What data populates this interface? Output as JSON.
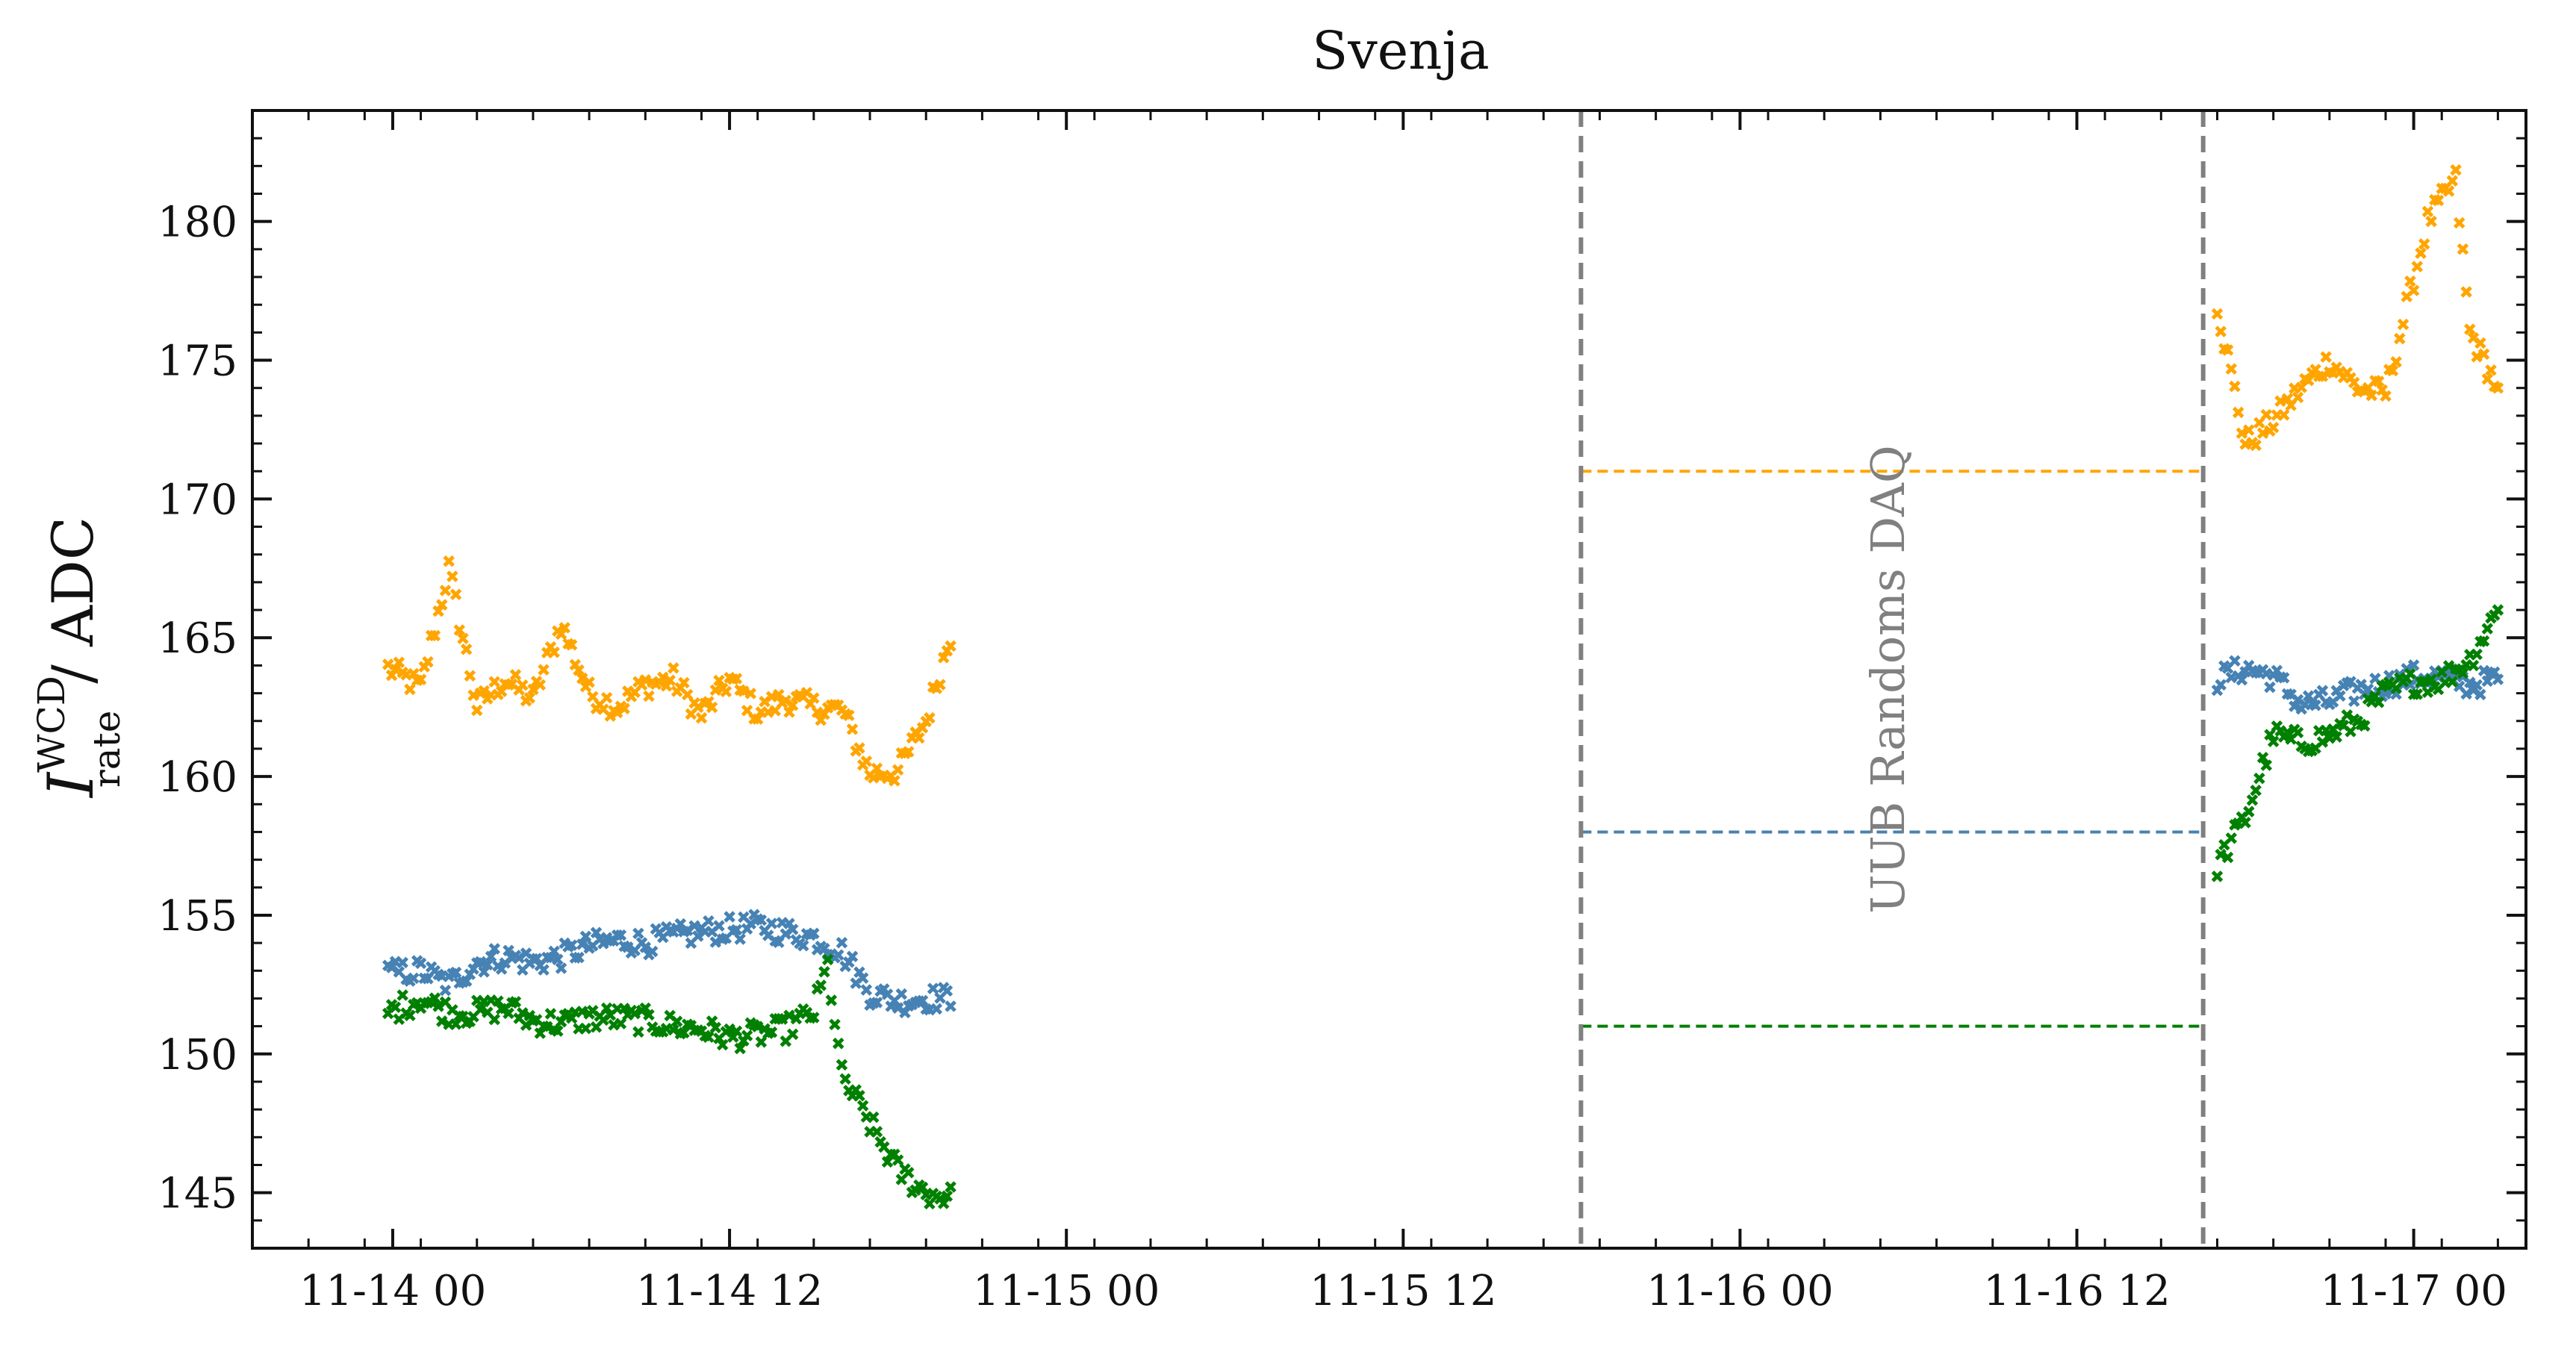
{
  "chart_data": {
    "type": "scatter",
    "title": "Svenja",
    "xlabel": "",
    "ylabel": {
      "symbol": "I",
      "superscript": "WCD",
      "subscript": "rate",
      "unit": "/ ADC"
    },
    "x_axis": {
      "type": "datetime",
      "range": [
        "11-13 19:00",
        "11-17 04:00"
      ],
      "tick_labels": [
        "11-14 00",
        "11-14 12",
        "11-15 00",
        "11-15 12",
        "11-16 00",
        "11-16 12",
        "11-17 00"
      ],
      "tick_hours": [
        0,
        12,
        24,
        36,
        48,
        60,
        72
      ]
    },
    "ylim": [
      143,
      184
    ],
    "y_ticks": [
      145,
      150,
      155,
      160,
      165,
      170,
      175,
      180
    ],
    "grid": false,
    "legend": "none",
    "colors": {
      "orange": "#FFA500",
      "steelblue": "#4682B4",
      "green": "#008000",
      "gray": "#808080"
    },
    "gap": {
      "start": "11-15 18:20",
      "end": "11-16 16:30",
      "label": "UUB Randoms DAQ",
      "levels": [
        {
          "color": "#FFA500",
          "value": 171
        },
        {
          "color": "#4682B4",
          "value": 158
        },
        {
          "color": "#008000",
          "value": 151
        }
      ]
    },
    "series": [
      {
        "color": "#FFA500",
        "marker": "x",
        "key_points": [
          [
            "11-13 23:50",
            163.9
          ],
          [
            "11-14 01:00",
            163.2
          ],
          [
            "11-14 02:00",
            167.5
          ],
          [
            "11-14 03:00",
            162.5
          ],
          [
            "11-14 04:00",
            163.5
          ],
          [
            "11-14 05:00",
            162.8
          ],
          [
            "11-14 06:00",
            165.5
          ],
          [
            "11-14 07:00",
            163.0
          ],
          [
            "11-14 08:00",
            162.5
          ],
          [
            "11-14 09:00",
            163.3
          ],
          [
            "11-14 10:00",
            163.5
          ],
          [
            "11-14 11:00",
            162.2
          ],
          [
            "11-14 12:00",
            163.5
          ],
          [
            "11-14 13:00",
            162.3
          ],
          [
            "11-14 14:00",
            162.8
          ],
          [
            "11-14 15:00",
            162.5
          ],
          [
            "11-14 16:00",
            162.4
          ],
          [
            "11-14 17:00",
            160.1
          ],
          [
            "11-14 18:00",
            160.2
          ],
          [
            "11-14 19:00",
            162.0
          ],
          [
            "11-14 20:00",
            165.5
          ],
          [
            "11-16 17:00",
            177.0
          ],
          [
            "11-16 18:00",
            172.0
          ],
          [
            "11-16 19:00",
            172.8
          ],
          [
            "11-16 20:00",
            174.0
          ],
          [
            "11-16 21:00",
            175.0
          ],
          [
            "11-16 22:00",
            174.0
          ],
          [
            "11-16 23:00",
            173.8
          ],
          [
            "11-17 00:30",
            180.0
          ],
          [
            "11-17 01:30",
            181.5
          ],
          [
            "11-17 02:00",
            176.0
          ],
          [
            "11-17 03:00",
            174.0
          ]
        ]
      },
      {
        "color": "#4682B4",
        "marker": "x",
        "key_points": [
          [
            "11-13 23:50",
            152.9
          ],
          [
            "11-14 01:00",
            153.0
          ],
          [
            "11-14 02:00",
            152.5
          ],
          [
            "11-14 03:00",
            153.3
          ],
          [
            "11-14 04:00",
            153.5
          ],
          [
            "11-14 05:00",
            153.3
          ],
          [
            "11-14 06:00",
            153.5
          ],
          [
            "11-14 07:00",
            153.9
          ],
          [
            "11-14 08:00",
            154.1
          ],
          [
            "11-14 09:00",
            154.0
          ],
          [
            "11-14 10:00",
            154.2
          ],
          [
            "11-14 11:00",
            154.4
          ],
          [
            "11-14 12:00",
            154.5
          ],
          [
            "11-14 13:00",
            154.6
          ],
          [
            "11-14 14:00",
            154.4
          ],
          [
            "11-14 15:00",
            154.2
          ],
          [
            "11-14 16:00",
            153.7
          ],
          [
            "11-14 17:00",
            152.2
          ],
          [
            "11-14 18:00",
            151.9
          ],
          [
            "11-14 19:00",
            152.0
          ],
          [
            "11-14 20:00",
            152.0
          ],
          [
            "11-16 17:00",
            163.5
          ],
          [
            "11-16 18:00",
            163.9
          ],
          [
            "11-16 19:00",
            163.6
          ],
          [
            "11-16 20:00",
            162.6
          ],
          [
            "11-16 21:00",
            162.7
          ],
          [
            "11-16 22:00",
            163.1
          ],
          [
            "11-16 23:00",
            163.3
          ],
          [
            "11-17 00:00",
            163.6
          ],
          [
            "11-17 01:00",
            163.6
          ],
          [
            "11-17 02:00",
            163.3
          ],
          [
            "11-17 03:00",
            163.5
          ]
        ]
      },
      {
        "color": "#008000",
        "marker": "x",
        "key_points": [
          [
            "11-13 23:50",
            151.5
          ],
          [
            "11-14 01:00",
            152.0
          ],
          [
            "11-14 02:00",
            151.5
          ],
          [
            "11-14 03:00",
            151.5
          ],
          [
            "11-14 04:00",
            151.7
          ],
          [
            "11-14 05:00",
            151.2
          ],
          [
            "11-14 06:00",
            151.1
          ],
          [
            "11-14 07:00",
            151.3
          ],
          [
            "11-14 08:00",
            151.3
          ],
          [
            "11-14 09:00",
            151.2
          ],
          [
            "11-14 10:00",
            151.0
          ],
          [
            "11-14 11:00",
            150.9
          ],
          [
            "11-14 12:00",
            150.6
          ],
          [
            "11-14 13:00",
            150.7
          ],
          [
            "11-14 14:00",
            150.9
          ],
          [
            "11-14 15:00",
            151.5
          ],
          [
            "11-14 15:30",
            153.2
          ],
          [
            "11-14 16:00",
            149.2
          ],
          [
            "11-14 17:00",
            147.5
          ],
          [
            "11-14 18:00",
            145.8
          ],
          [
            "11-14 19:00",
            145.0
          ],
          [
            "11-14 20:00",
            144.8
          ],
          [
            "11-16 17:00",
            156.8
          ],
          [
            "11-16 18:00",
            158.5
          ],
          [
            "11-16 19:00",
            161.5
          ],
          [
            "11-16 20:00",
            161.2
          ],
          [
            "11-16 21:00",
            161.5
          ],
          [
            "11-16 22:00",
            162.0
          ],
          [
            "11-16 23:00",
            163.0
          ],
          [
            "11-17 00:00",
            163.4
          ],
          [
            "11-17 01:00",
            163.5
          ],
          [
            "11-17 02:00",
            164.2
          ],
          [
            "11-17 03:00",
            166.0
          ]
        ]
      }
    ]
  }
}
